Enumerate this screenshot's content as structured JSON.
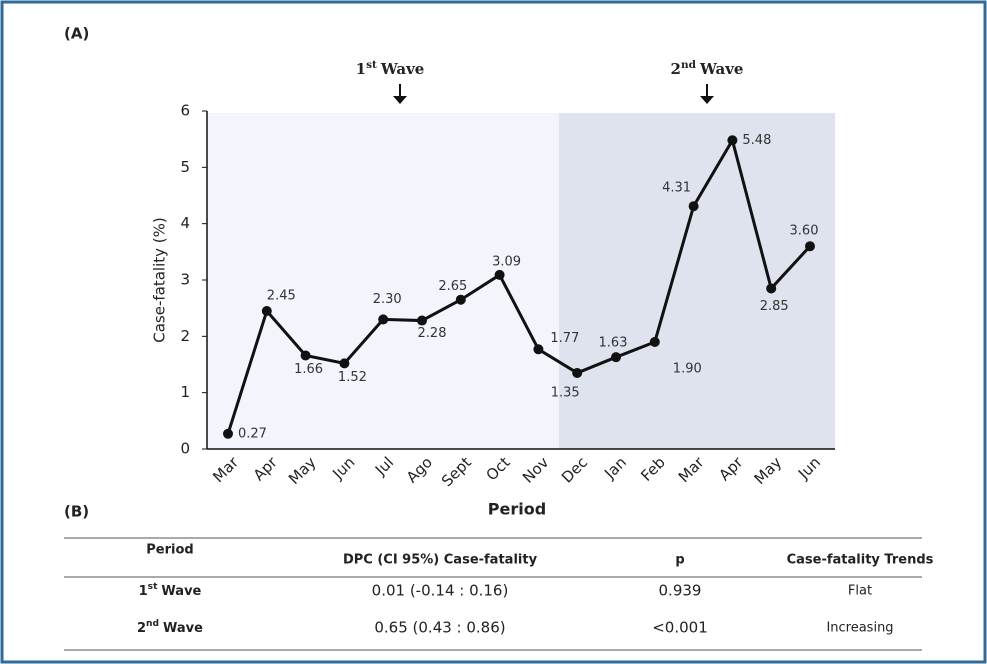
{
  "panel_a": "(A)",
  "chart_data": {
    "type": "line",
    "ylabel": "Case-fatality (%)",
    "xlabel": "Period",
    "annotations": [
      {
        "ordinal": "1",
        "suffix": "st",
        "label": "Wave"
      },
      {
        "ordinal": "2",
        "suffix": "nd",
        "label": "Wave"
      }
    ],
    "categories": [
      "Mar",
      "Apr",
      "May",
      "Jun",
      "Jul",
      "Ago",
      "Sept",
      "Oct",
      "Nov",
      "Dec",
      "Jan",
      "Feb",
      "Mar",
      "Apr",
      "May",
      "Jun"
    ],
    "series": [
      {
        "name": "Case-fatality",
        "color": "#111111",
        "values": [
          0.27,
          2.45,
          1.66,
          1.52,
          2.3,
          2.28,
          2.65,
          3.09,
          1.77,
          1.35,
          1.63,
          1.9,
          4.31,
          5.48,
          2.85,
          3.6
        ],
        "value_labels": [
          "0.27",
          "2.45",
          "1.66",
          "1.52",
          "2.30",
          "2.28",
          "2.65",
          "3.09",
          "1.77",
          "1.35",
          "1.63",
          "1.90",
          "4.31",
          "5.48",
          "2.85",
          "3.60"
        ]
      }
    ],
    "ylim": [
      0,
      6
    ],
    "yticks": [
      0,
      1,
      2,
      3,
      4,
      5,
      6
    ],
    "grid": false
  },
  "panel_b": "(B)",
  "table": {
    "header": [
      "Period",
      "DPC (CI 95%) Case-fatality",
      "p",
      "Case-fatality Trends"
    ],
    "rows": [
      [
        {
          "ordinal": "1",
          "suffix": "st",
          "label": "Wave"
        },
        "0.01 (-0.14 : 0.16)",
        "0.939",
        "Flat"
      ],
      [
        {
          "ordinal": "2",
          "suffix": "nd",
          "label": "Wave"
        },
        "0.65 (0.43 : 0.86)",
        "<0.001",
        "Increasing"
      ]
    ]
  }
}
